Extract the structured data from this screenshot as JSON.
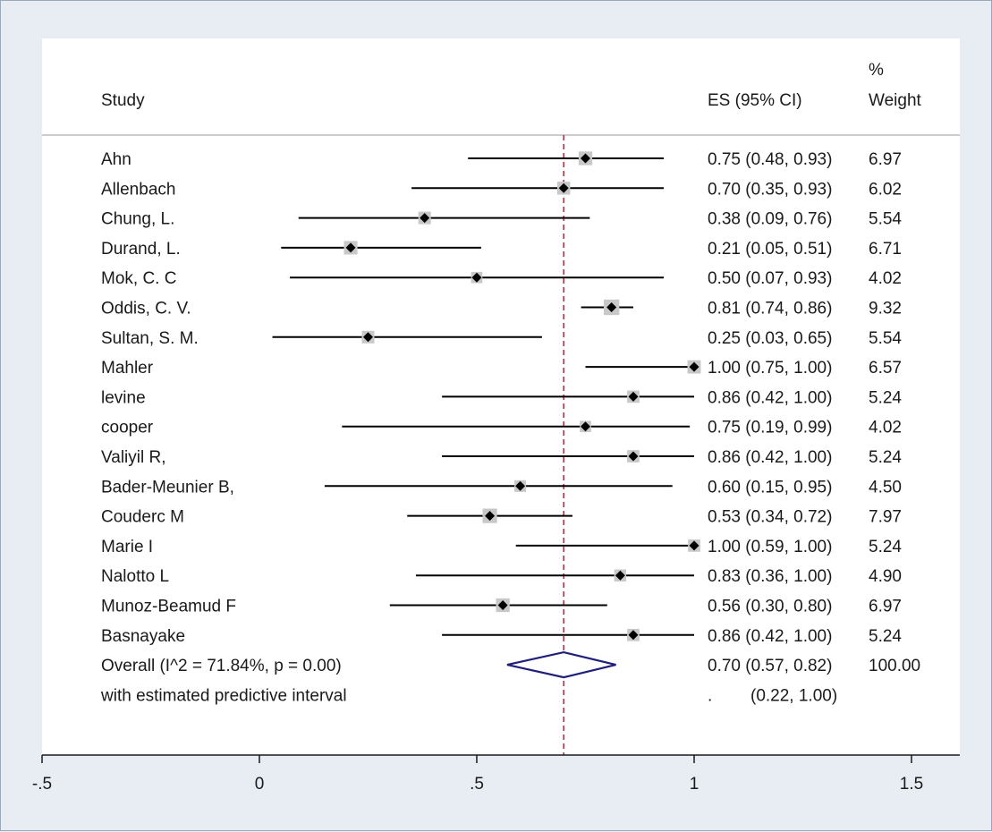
{
  "chart_data": {
    "type": "forest",
    "header": {
      "study_label": "Study",
      "es_label": "ES (95% CI)",
      "weight_label_line1": "%",
      "weight_label_line2": "Weight"
    },
    "studies": [
      {
        "name": "Ahn",
        "es": 0.75,
        "lo": 0.48,
        "hi": 0.93,
        "es_text": "0.75 (0.48, 0.93)",
        "weight": "6.97"
      },
      {
        "name": "Allenbach",
        "es": 0.7,
        "lo": 0.35,
        "hi": 0.93,
        "es_text": "0.70 (0.35, 0.93)",
        "weight": "6.02"
      },
      {
        "name": "Chung, L.",
        "es": 0.38,
        "lo": 0.09,
        "hi": 0.76,
        "es_text": "0.38 (0.09, 0.76)",
        "weight": "5.54"
      },
      {
        "name": "Durand, L.",
        "es": 0.21,
        "lo": 0.05,
        "hi": 0.51,
        "es_text": "0.21 (0.05, 0.51)",
        "weight": "6.71"
      },
      {
        "name": "Mok, C. C",
        "es": 0.5,
        "lo": 0.07,
        "hi": 0.93,
        "es_text": "0.50 (0.07, 0.93)",
        "weight": "4.02"
      },
      {
        "name": "Oddis, C. V.",
        "es": 0.81,
        "lo": 0.74,
        "hi": 0.86,
        "es_text": "0.81 (0.74, 0.86)",
        "weight": "9.32"
      },
      {
        "name": "Sultan, S. M.",
        "es": 0.25,
        "lo": 0.03,
        "hi": 0.65,
        "es_text": "0.25 (0.03, 0.65)",
        "weight": "5.54"
      },
      {
        "name": "Mahler",
        "es": 1.0,
        "lo": 0.75,
        "hi": 1.0,
        "es_text": "1.00 (0.75, 1.00)",
        "weight": "6.57"
      },
      {
        "name": "levine",
        "es": 0.86,
        "lo": 0.42,
        "hi": 1.0,
        "es_text": "0.86 (0.42, 1.00)",
        "weight": "5.24"
      },
      {
        "name": "cooper",
        "es": 0.75,
        "lo": 0.19,
        "hi": 0.99,
        "es_text": "0.75 (0.19, 0.99)",
        "weight": "4.02"
      },
      {
        "name": "Valiyil R,",
        "es": 0.86,
        "lo": 0.42,
        "hi": 1.0,
        "es_text": "0.86 (0.42, 1.00)",
        "weight": "5.24"
      },
      {
        "name": "Bader-Meunier B,",
        "es": 0.6,
        "lo": 0.15,
        "hi": 0.95,
        "es_text": "0.60 (0.15, 0.95)",
        "weight": "4.50"
      },
      {
        "name": "Couderc M",
        "es": 0.53,
        "lo": 0.34,
        "hi": 0.72,
        "es_text": "0.53 (0.34, 0.72)",
        "weight": "7.97"
      },
      {
        "name": "Marie I",
        "es": 1.0,
        "lo": 0.59,
        "hi": 1.0,
        "es_text": "1.00 (0.59, 1.00)",
        "weight": "5.24"
      },
      {
        "name": "Nalotto L",
        "es": 0.83,
        "lo": 0.36,
        "hi": 1.0,
        "es_text": "0.83 (0.36, 1.00)",
        "weight": "4.90"
      },
      {
        "name": "Munoz-Beamud F",
        "es": 0.56,
        "lo": 0.3,
        "hi": 0.8,
        "es_text": "0.56 (0.30, 0.80)",
        "weight": "6.97"
      },
      {
        "name": "Basnayake",
        "es": 0.86,
        "lo": 0.42,
        "hi": 1.0,
        "es_text": "0.86 (0.42, 1.00)",
        "weight": "5.24"
      }
    ],
    "overall": {
      "label": "Overall  (I^2 = 71.84%, p = 0.00)",
      "es": 0.7,
      "lo": 0.57,
      "hi": 0.82,
      "es_text": "0.70 (0.57, 0.82)",
      "weight": "100.00"
    },
    "predictive": {
      "label": "with estimated predictive interval",
      "dot": ".",
      "interval_text": "(0.22, 1.00)",
      "lo": 0.22,
      "hi": 1.0
    },
    "reference_line": 0.7,
    "xlim": [
      -0.5,
      1.5
    ],
    "x_ticks": [
      {
        "value": -0.5,
        "label": "-.5"
      },
      {
        "value": 0,
        "label": "0"
      },
      {
        "value": 0.5,
        "label": ".5"
      },
      {
        "value": 1,
        "label": "1"
      },
      {
        "value": 1.5,
        "label": "1.5"
      }
    ],
    "colors": {
      "background": "#e8edf3",
      "plot_background": "#ffffff",
      "ci_line": "#000000",
      "marker": "#000000",
      "weight_box": "#c8c8c8",
      "reference_line": "#b03a48",
      "diamond": "#1f1f7a",
      "axis": "#1a1a1a"
    }
  }
}
